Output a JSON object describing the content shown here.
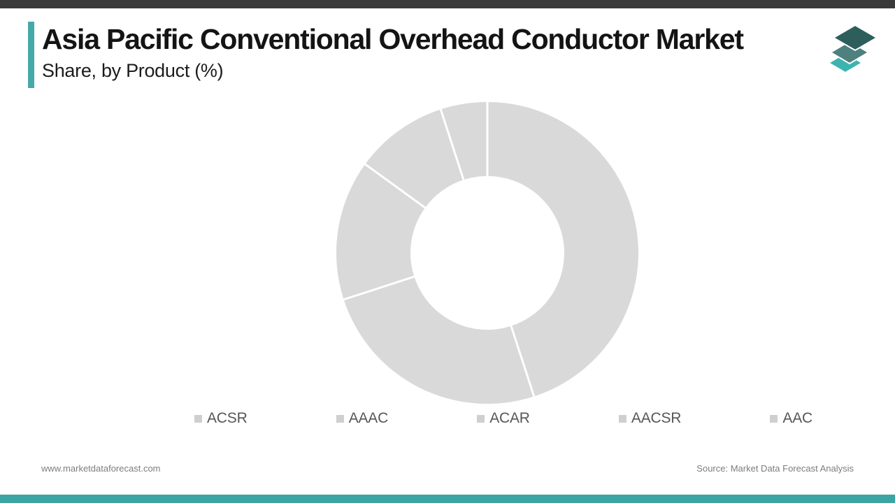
{
  "page": {
    "background": "#ffffff"
  },
  "top_bar": {
    "color": "#3a3a3a"
  },
  "bottom_bar": {
    "color": "#3aa5a3"
  },
  "header": {
    "title": "Asia Pacific Conventional Overhead Conductor Market",
    "subtitle": "Share, by Product (%)",
    "accent_color": "#46a9a9"
  },
  "logo": {
    "top_color": "#2d5e5c",
    "middle_color": "#4d807e",
    "bottom_color": "#3bb4af"
  },
  "chart_data": {
    "type": "pie",
    "subtype": "donut",
    "title": "Asia Pacific Conventional Overhead Conductor Market Share, by Product (%)",
    "categories": [
      "ACSR",
      "AAAC",
      "ACAR",
      "AACSR",
      "AAC"
    ],
    "values": [
      45,
      25,
      15,
      10,
      5
    ],
    "unit": "%",
    "start_angle_deg": 0,
    "direction": "clockwise",
    "inner_radius_ratio": 0.51,
    "segment_color": "#d9d9d9",
    "divider_color": "#ffffff",
    "legend_position": "bottom",
    "legend_marker_color": "#cfcfcf",
    "legend_text_color": "#565656"
  },
  "footer": {
    "website": "www.marketdataforecast.com",
    "source": "Source: Market Data Forecast Analysis"
  }
}
